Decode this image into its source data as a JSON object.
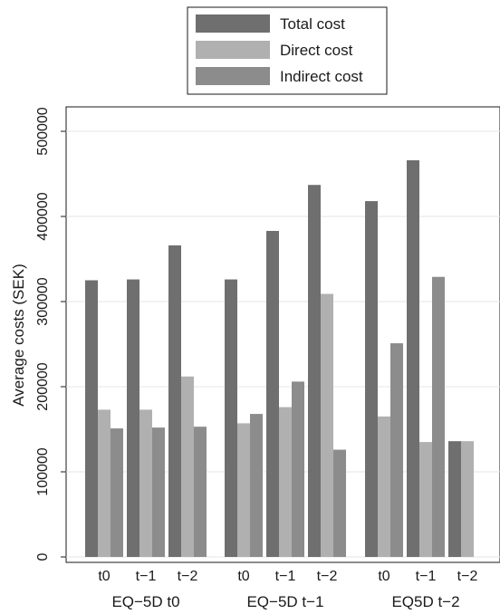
{
  "chart_data": {
    "type": "bar",
    "ylabel": "Average costs (SEK)",
    "ylim": [
      0,
      520000
    ],
    "yticks": [
      0,
      100000,
      200000,
      300000,
      400000,
      500000
    ],
    "grid": true,
    "legend_position": "top-center",
    "series": [
      {
        "name": "Total cost",
        "color": "#6f6f6f"
      },
      {
        "name": "Direct cost",
        "color": "#b0b0b0"
      },
      {
        "name": "Indirect cost",
        "color": "#8c8c8c"
      }
    ],
    "groups": [
      {
        "label": "EQ−5D t0",
        "subgroups": [
          {
            "label": "t0",
            "values": [
              325000,
              173000,
              151000
            ]
          },
          {
            "label": "t−1",
            "values": [
              326000,
              173000,
              152000
            ]
          },
          {
            "label": "t−2",
            "values": [
              366000,
              212000,
              153000
            ]
          }
        ]
      },
      {
        "label": "EQ−5D t−1",
        "subgroups": [
          {
            "label": "t0",
            "values": [
              326000,
              157000,
              168000
            ]
          },
          {
            "label": "t−1",
            "values": [
              383000,
              176000,
              206000
            ]
          },
          {
            "label": "t−2",
            "values": [
              437000,
              309000,
              126000
            ]
          }
        ]
      },
      {
        "label": "EQ5D t−2",
        "subgroups": [
          {
            "label": "t0",
            "values": [
              418000,
              165000,
              251000
            ]
          },
          {
            "label": "t−1",
            "values": [
              466000,
              135000,
              329000
            ]
          },
          {
            "label": "t−2",
            "values": [
              136000,
              136000,
              null
            ]
          }
        ]
      }
    ]
  }
}
